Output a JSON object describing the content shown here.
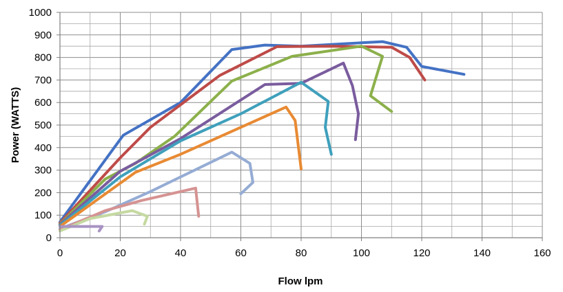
{
  "chart_data": {
    "type": "line",
    "title": "",
    "xlabel": "Flow lpm",
    "ylabel": "Power (WATTS)",
    "xlim": [
      0,
      160
    ],
    "ylim": [
      0,
      1000
    ],
    "xticks": [
      0,
      20,
      40,
      60,
      80,
      100,
      120,
      140,
      160
    ],
    "yticks": [
      0,
      100,
      200,
      300,
      400,
      500,
      600,
      700,
      800,
      900,
      1000
    ],
    "minor_x_step": 10,
    "minor_y_step": 50,
    "grid": true,
    "legend": "none",
    "series": [
      {
        "color": "#4472C4",
        "points": [
          [
            0,
            70
          ],
          [
            21,
            455
          ],
          [
            40,
            600
          ],
          [
            57,
            835
          ],
          [
            68,
            855
          ],
          [
            80,
            850
          ],
          [
            100,
            865
          ],
          [
            107,
            870
          ],
          [
            115,
            845
          ],
          [
            120,
            760
          ],
          [
            134,
            725
          ]
        ]
      },
      {
        "color": "#BE4B48",
        "points": [
          [
            0,
            65
          ],
          [
            20,
            355
          ],
          [
            30,
            490
          ],
          [
            40,
            590
          ],
          [
            53,
            720
          ],
          [
            72,
            848
          ],
          [
            90,
            850
          ],
          [
            110,
            845
          ],
          [
            116,
            800
          ],
          [
            121,
            700
          ]
        ]
      },
      {
        "color": "#8CB04B",
        "points": [
          [
            0,
            60
          ],
          [
            15,
            260
          ],
          [
            25,
            330
          ],
          [
            38,
            450
          ],
          [
            57,
            695
          ],
          [
            77,
            805
          ],
          [
            100,
            850
          ],
          [
            107,
            805
          ],
          [
            103,
            630
          ],
          [
            110,
            560
          ]
        ]
      },
      {
        "color": "#7A5C9E",
        "points": [
          [
            0,
            58
          ],
          [
            20,
            295
          ],
          [
            40,
            440
          ],
          [
            68,
            680
          ],
          [
            80,
            685
          ],
          [
            94,
            775
          ],
          [
            97,
            675
          ],
          [
            99,
            550
          ],
          [
            98,
            435
          ]
        ]
      },
      {
        "color": "#3FA0BC",
        "points": [
          [
            0,
            55
          ],
          [
            20,
            270
          ],
          [
            40,
            430
          ],
          [
            60,
            550
          ],
          [
            80,
            690
          ],
          [
            89,
            605
          ],
          [
            88,
            490
          ],
          [
            90,
            370
          ]
        ]
      },
      {
        "color": "#E88A33",
        "points": [
          [
            0,
            50
          ],
          [
            25,
            290
          ],
          [
            40,
            370
          ],
          [
            75,
            580
          ],
          [
            78,
            520
          ],
          [
            80,
            305
          ]
        ]
      },
      {
        "color": "#95ACD4",
        "points": [
          [
            0,
            40
          ],
          [
            15,
            115
          ],
          [
            30,
            205
          ],
          [
            57,
            380
          ],
          [
            63,
            330
          ],
          [
            64,
            245
          ],
          [
            60,
            195
          ]
        ]
      },
      {
        "color": "#D59392",
        "points": [
          [
            0,
            35
          ],
          [
            15,
            120
          ],
          [
            27,
            165
          ],
          [
            45,
            220
          ],
          [
            46,
            95
          ]
        ]
      },
      {
        "color": "#C5D9A1",
        "points": [
          [
            0,
            30
          ],
          [
            10,
            85
          ],
          [
            20,
            110
          ],
          [
            24,
            120
          ],
          [
            29,
            95
          ],
          [
            28,
            60
          ]
        ]
      },
      {
        "color": "#A893C3",
        "points": [
          [
            0,
            50
          ],
          [
            14,
            50
          ],
          [
            13,
            30
          ]
        ]
      }
    ]
  }
}
